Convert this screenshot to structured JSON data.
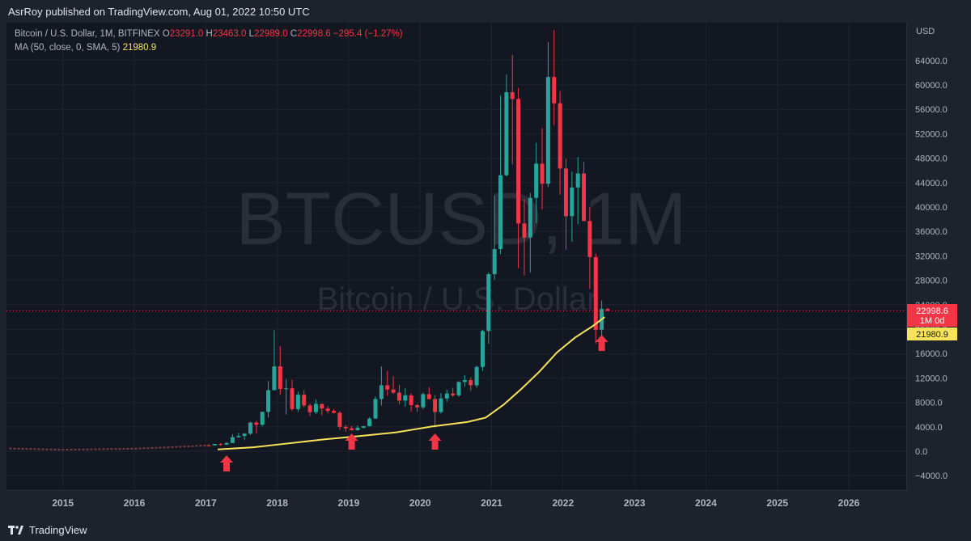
{
  "header": {
    "published": "AsrRoy published on TradingView.com, Aug 01, 2022 10:50 UTC"
  },
  "legend": {
    "title": "Bitcoin / U.S. Dollar, 1M, BITFINEX",
    "o_label": "O",
    "o_value": "23291.0",
    "h_label": "H",
    "h_value": "23463.0",
    "l_label": "L",
    "l_value": "22989.0",
    "c_label": "C",
    "c_value": "22998.6",
    "change": "−295.4 (−1.27%)",
    "ma_label": "MA (50, close, 0, SMA, 5)",
    "ma_value": "21980.9"
  },
  "watermark": {
    "symbol": "BTCUSD, 1M",
    "name": "Bitcoin / U.S. Dollar"
  },
  "price_axis": {
    "currency": "USD",
    "price_tag": "22998.6",
    "timeframe_tag": "1M 0d",
    "ma_tag": "21980.9"
  },
  "footer": {
    "brand": "TradingView"
  },
  "colors": {
    "up": "#26a69a",
    "down": "#f23645",
    "ma": "#f7e35a",
    "arrow": "#f23645",
    "background": "#131722"
  },
  "chart_data": {
    "type": "candlestick",
    "x_ticks": [
      "2015",
      "2016",
      "2017",
      "2018",
      "2019",
      "2020",
      "2021",
      "2022",
      "2023",
      "2024",
      "2025",
      "2026"
    ],
    "y_ticks": [
      -4000,
      0,
      4000,
      8000,
      12000,
      16000,
      20000,
      24000,
      28000,
      32000,
      36000,
      40000,
      44000,
      48000,
      52000,
      56000,
      60000,
      64000
    ],
    "y_tick_labels": [
      "−4000.0",
      "0.0",
      "4000.0",
      "8000.0",
      "12000.0",
      "16000.0",
      "20000.0",
      "24000.0",
      "28000.0",
      "32000.0",
      "36000.0",
      "40000.0",
      "44000.0",
      "48000.0",
      "52000.0",
      "56000.0",
      "60000.0",
      "64000.0"
    ],
    "ylim": [
      -5800,
      69000
    ],
    "xlim": [
      2014.25,
      2026.75
    ],
    "candles": [
      {
        "t": "2017-01",
        "o": 970,
        "h": 1150,
        "l": 750,
        "c": 960
      },
      {
        "t": "2017-02",
        "o": 960,
        "h": 1200,
        "l": 920,
        "c": 1190
      },
      {
        "t": "2017-03",
        "o": 1190,
        "h": 1350,
        "l": 900,
        "c": 1080
      },
      {
        "t": "2017-04",
        "o": 1080,
        "h": 1500,
        "l": 1050,
        "c": 1350
      },
      {
        "t": "2017-05",
        "o": 1350,
        "h": 2800,
        "l": 1350,
        "c": 2300
      },
      {
        "t": "2017-06",
        "o": 2300,
        "h": 3000,
        "l": 2200,
        "c": 2500
      },
      {
        "t": "2017-07",
        "o": 2500,
        "h": 3000,
        "l": 1800,
        "c": 2875
      },
      {
        "t": "2017-08",
        "o": 2875,
        "h": 4800,
        "l": 2700,
        "c": 4700
      },
      {
        "t": "2017-09",
        "o": 4700,
        "h": 5000,
        "l": 2900,
        "c": 4350
      },
      {
        "t": "2017-10",
        "o": 4350,
        "h": 6500,
        "l": 4100,
        "c": 6450
      },
      {
        "t": "2017-11",
        "o": 6450,
        "h": 11500,
        "l": 5500,
        "c": 10000
      },
      {
        "t": "2017-12",
        "o": 10000,
        "h": 19800,
        "l": 10700,
        "c": 13900
      },
      {
        "t": "2018-01",
        "o": 13900,
        "h": 17200,
        "l": 9200,
        "c": 10200
      },
      {
        "t": "2018-02",
        "o": 10200,
        "h": 11800,
        "l": 6000,
        "c": 10300
      },
      {
        "t": "2018-03",
        "o": 10300,
        "h": 11700,
        "l": 6600,
        "c": 6900
      },
      {
        "t": "2018-04",
        "o": 6900,
        "h": 9800,
        "l": 6450,
        "c": 9250
      },
      {
        "t": "2018-05",
        "o": 9250,
        "h": 10000,
        "l": 7200,
        "c": 7500
      },
      {
        "t": "2018-06",
        "o": 7500,
        "h": 7800,
        "l": 5800,
        "c": 6400
      },
      {
        "t": "2018-07",
        "o": 6400,
        "h": 8500,
        "l": 6100,
        "c": 7750
      },
      {
        "t": "2018-08",
        "o": 7750,
        "h": 7800,
        "l": 5900,
        "c": 7000
      },
      {
        "t": "2018-09",
        "o": 7000,
        "h": 7400,
        "l": 6200,
        "c": 6600
      },
      {
        "t": "2018-10",
        "o": 6600,
        "h": 6900,
        "l": 6200,
        "c": 6300
      },
      {
        "t": "2018-11",
        "o": 6300,
        "h": 6550,
        "l": 3500,
        "c": 4000
      },
      {
        "t": "2018-12",
        "o": 4000,
        "h": 4300,
        "l": 3200,
        "c": 3750
      },
      {
        "t": "2019-01",
        "o": 3750,
        "h": 4150,
        "l": 3350,
        "c": 3450
      },
      {
        "t": "2019-02",
        "o": 3450,
        "h": 4250,
        "l": 3380,
        "c": 3850
      },
      {
        "t": "2019-03",
        "o": 3850,
        "h": 4150,
        "l": 3690,
        "c": 4100
      },
      {
        "t": "2019-04",
        "o": 4100,
        "h": 5600,
        "l": 4050,
        "c": 5350
      },
      {
        "t": "2019-05",
        "o": 5350,
        "h": 9000,
        "l": 5300,
        "c": 8550
      },
      {
        "t": "2019-06",
        "o": 8550,
        "h": 13900,
        "l": 7500,
        "c": 10800
      },
      {
        "t": "2019-07",
        "o": 10800,
        "h": 13200,
        "l": 9100,
        "c": 10100
      },
      {
        "t": "2019-08",
        "o": 10100,
        "h": 12300,
        "l": 9400,
        "c": 9600
      },
      {
        "t": "2019-09",
        "o": 9600,
        "h": 10900,
        "l": 7700,
        "c": 8300
      },
      {
        "t": "2019-10",
        "o": 8300,
        "h": 10300,
        "l": 7300,
        "c": 9150
      },
      {
        "t": "2019-11",
        "o": 9150,
        "h": 9500,
        "l": 6500,
        "c": 7550
      },
      {
        "t": "2019-12",
        "o": 7550,
        "h": 7750,
        "l": 6450,
        "c": 7200
      },
      {
        "t": "2020-01",
        "o": 7200,
        "h": 9600,
        "l": 6900,
        "c": 9350
      },
      {
        "t": "2020-02",
        "o": 9350,
        "h": 10500,
        "l": 8450,
        "c": 8550
      },
      {
        "t": "2020-03",
        "o": 8550,
        "h": 9200,
        "l": 3850,
        "c": 6420
      },
      {
        "t": "2020-04",
        "o": 6420,
        "h": 9500,
        "l": 6150,
        "c": 8650
      },
      {
        "t": "2020-05",
        "o": 8650,
        "h": 10100,
        "l": 8100,
        "c": 9450
      },
      {
        "t": "2020-06",
        "o": 9450,
        "h": 10400,
        "l": 8900,
        "c": 9150
      },
      {
        "t": "2020-07",
        "o": 9150,
        "h": 11450,
        "l": 8900,
        "c": 11350
      },
      {
        "t": "2020-08",
        "o": 11350,
        "h": 12450,
        "l": 10600,
        "c": 11650
      },
      {
        "t": "2020-09",
        "o": 11650,
        "h": 12100,
        "l": 9900,
        "c": 10800
      },
      {
        "t": "2020-10",
        "o": 10800,
        "h": 14000,
        "l": 10400,
        "c": 13800
      },
      {
        "t": "2020-11",
        "o": 13800,
        "h": 19900,
        "l": 13200,
        "c": 19700
      },
      {
        "t": "2020-12",
        "o": 19700,
        "h": 29300,
        "l": 17600,
        "c": 29000
      },
      {
        "t": "2021-01",
        "o": 29000,
        "h": 41900,
        "l": 28100,
        "c": 33100
      },
      {
        "t": "2021-02",
        "o": 33100,
        "h": 58300,
        "l": 32300,
        "c": 45200
      },
      {
        "t": "2021-03",
        "o": 45200,
        "h": 61700,
        "l": 45000,
        "c": 58800
      },
      {
        "t": "2021-04",
        "o": 58800,
        "h": 64900,
        "l": 47000,
        "c": 57700
      },
      {
        "t": "2021-05",
        "o": 57700,
        "h": 59500,
        "l": 30000,
        "c": 37300
      },
      {
        "t": "2021-06",
        "o": 37300,
        "h": 41300,
        "l": 28800,
        "c": 35000
      },
      {
        "t": "2021-07",
        "o": 35000,
        "h": 42300,
        "l": 29300,
        "c": 41500
      },
      {
        "t": "2021-08",
        "o": 41500,
        "h": 50500,
        "l": 37400,
        "c": 47100
      },
      {
        "t": "2021-09",
        "o": 47100,
        "h": 52900,
        "l": 39600,
        "c": 43800
      },
      {
        "t": "2021-10",
        "o": 43800,
        "h": 67000,
        "l": 43300,
        "c": 61300
      },
      {
        "t": "2021-11",
        "o": 61300,
        "h": 69000,
        "l": 53400,
        "c": 57000
      },
      {
        "t": "2021-12",
        "o": 57000,
        "h": 59000,
        "l": 42000,
        "c": 46300
      },
      {
        "t": "2022-01",
        "o": 46300,
        "h": 47900,
        "l": 33000,
        "c": 38500
      },
      {
        "t": "2022-02",
        "o": 38500,
        "h": 45800,
        "l": 34300,
        "c": 43200
      },
      {
        "t": "2022-03",
        "o": 43200,
        "h": 48200,
        "l": 37200,
        "c": 45500
      },
      {
        "t": "2022-04",
        "o": 45500,
        "h": 47400,
        "l": 37700,
        "c": 37700
      },
      {
        "t": "2022-05",
        "o": 37700,
        "h": 40000,
        "l": 26600,
        "c": 31800
      },
      {
        "t": "2022-06",
        "o": 31800,
        "h": 32400,
        "l": 17600,
        "c": 19900
      },
      {
        "t": "2022-07",
        "o": 19900,
        "h": 24700,
        "l": 18800,
        "c": 23300
      },
      {
        "t": "2022-08",
        "o": 23291,
        "h": 23463,
        "l": 22989,
        "c": 22998.6
      }
    ],
    "ma": [
      {
        "t": "2017-03",
        "v": 300
      },
      {
        "t": "2017-09",
        "v": 650
      },
      {
        "t": "2018-03",
        "v": 1300
      },
      {
        "t": "2018-09",
        "v": 1950
      },
      {
        "t": "2019-03",
        "v": 2500
      },
      {
        "t": "2019-09",
        "v": 3100
      },
      {
        "t": "2020-03",
        "v": 4050
      },
      {
        "t": "2020-09",
        "v": 4800
      },
      {
        "t": "2020-12",
        "v": 5500
      },
      {
        "t": "2021-03",
        "v": 7600
      },
      {
        "t": "2021-06",
        "v": 10200
      },
      {
        "t": "2021-09",
        "v": 13000
      },
      {
        "t": "2021-12",
        "v": 16200
      },
      {
        "t": "2022-03",
        "v": 18600
      },
      {
        "t": "2022-06",
        "v": 20500
      },
      {
        "t": "2022-08",
        "v": 21980.9
      }
    ],
    "price_line": 22998.6,
    "pre_2017_baseline": [
      {
        "t": "2014-04",
        "v": 450
      },
      {
        "t": "2015-01",
        "v": 250
      },
      {
        "t": "2016-01",
        "v": 420
      },
      {
        "t": "2016-07",
        "v": 650
      },
      {
        "t": "2017-01",
        "v": 950
      }
    ],
    "marker_arrows": [
      "2017-04",
      "2019-01",
      "2020-03",
      "2022-07"
    ]
  }
}
